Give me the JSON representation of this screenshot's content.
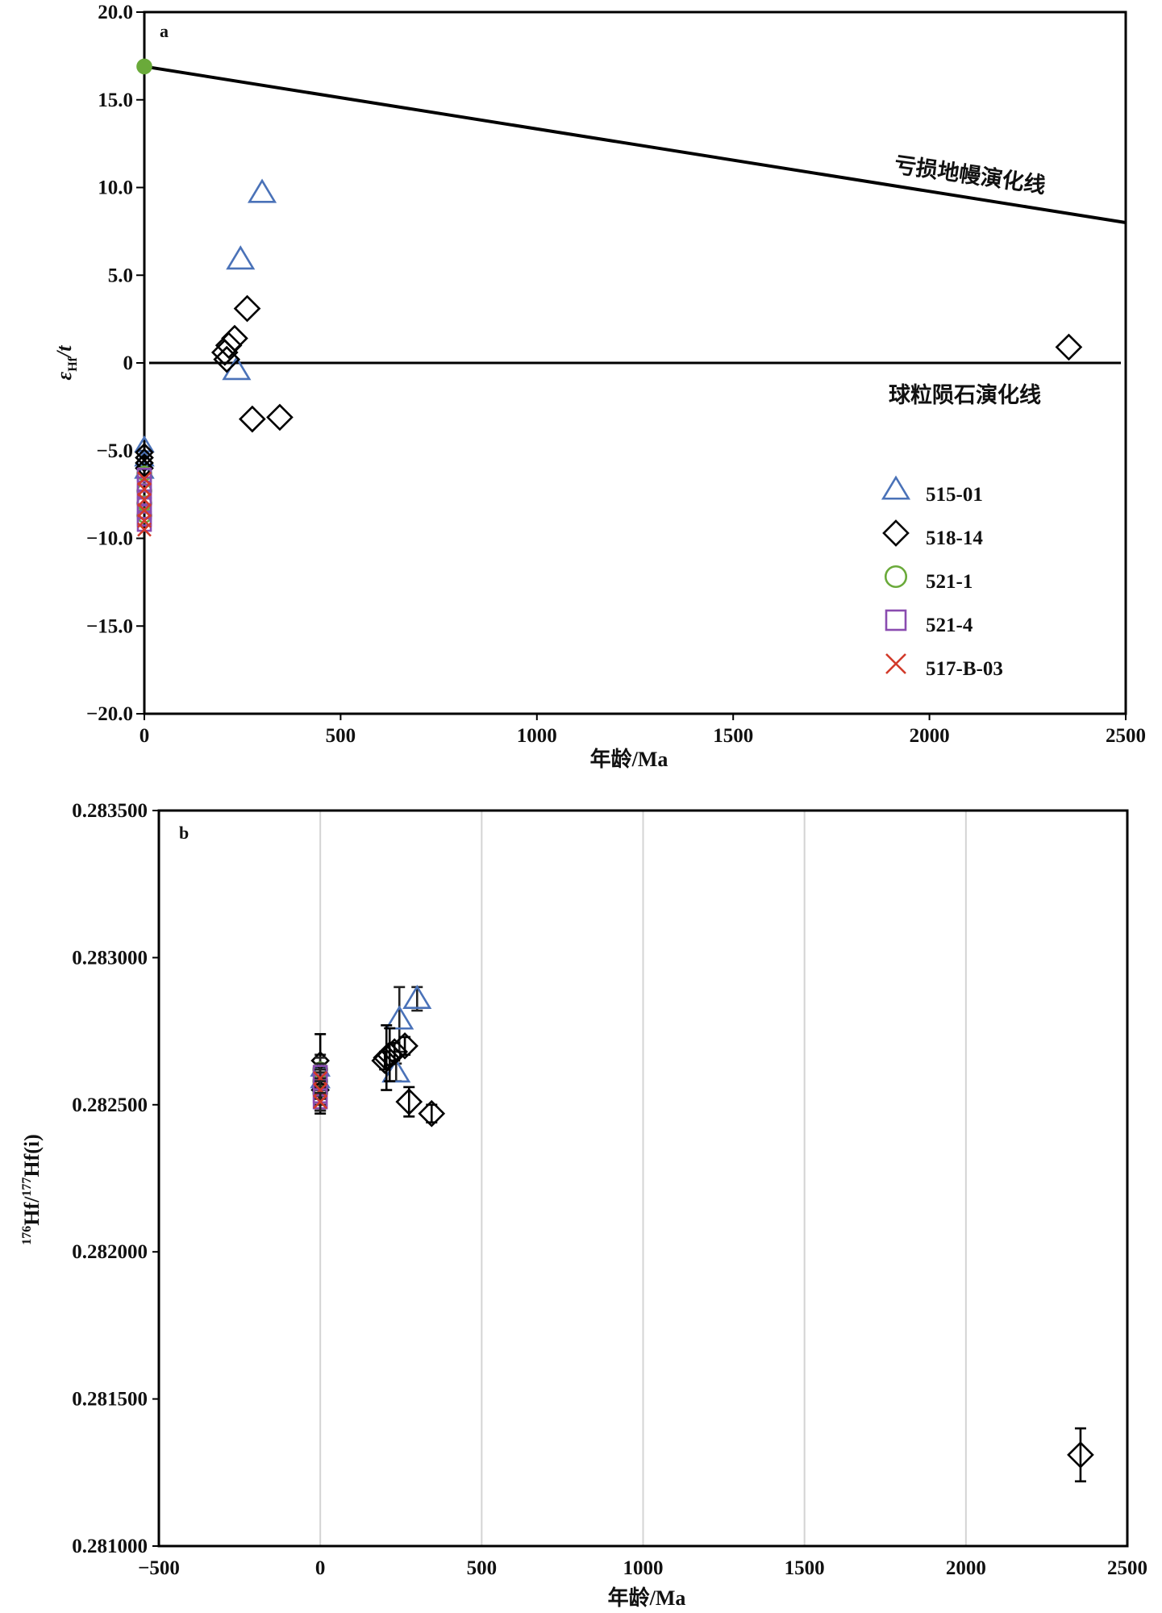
{
  "colors": {
    "515-01": "#4a72b8",
    "518-14": "#000000",
    "521-1": "#6aaa3a",
    "521-4": "#8a4cb0",
    "517-B-03": "#d23a2a",
    "grid": "#d4d4d4",
    "axis": "#000000"
  },
  "chart_data": [
    {
      "type": "scatter",
      "panel": "a",
      "xlabel": "年龄/Ma",
      "ylabel": "ε_Hf/t",
      "ylabel_main": "ε",
      "ylabel_sub": "Hf",
      "ylabel_tail": "/t",
      "xlim": [
        0,
        2500
      ],
      "ylim": [
        -20,
        20
      ],
      "x_ticks": [
        "0",
        "500",
        "1000",
        "1500",
        "2000",
        "2500"
      ],
      "x_tick_values": [
        0,
        500,
        1000,
        1500,
        2000,
        2500
      ],
      "y_ticks": [
        "20.0",
        "15.0",
        "10.0",
        "5.0",
        "0",
        "−5.0",
        "−10.0",
        "−15.0",
        "−20.0"
      ],
      "y_tick_values": [
        20,
        15,
        10,
        5,
        0,
        -5,
        -10,
        -15,
        -20
      ],
      "grid": false,
      "legend_position": "bottom-right",
      "reference_lines": [
        {
          "label": "亏损地幔演化线",
          "x": [
            0,
            2500
          ],
          "y": [
            16.9,
            8.0
          ]
        },
        {
          "label": "球粒陨石演化线",
          "x": [
            0,
            2500
          ],
          "y": [
            0,
            0
          ]
        }
      ],
      "series": [
        {
          "name": "515-01",
          "marker": "triangle",
          "x": [
            300,
            245,
            235,
            0,
            0,
            0
          ],
          "y": [
            9.7,
            5.9,
            -0.4,
            -4.7,
            -5.5,
            -6.2
          ]
        },
        {
          "name": "518-14",
          "marker": "diamond",
          "x": [
            262,
            230,
            215,
            205,
            210,
            275,
            345,
            2355,
            0,
            0,
            0,
            0
          ],
          "y": [
            3.1,
            1.4,
            1.0,
            0.6,
            0.2,
            -3.2,
            -3.1,
            0.9,
            -5.1,
            -5.4,
            -5.7,
            -6.0
          ]
        },
        {
          "name": "521-1",
          "marker": "circle",
          "x": [
            0,
            0,
            0,
            0,
            0
          ],
          "y": [
            16.9,
            -6.3,
            -7.3,
            -8.0,
            -8.7
          ]
        },
        {
          "name": "521-4",
          "marker": "square",
          "x": [
            0,
            0,
            0,
            0,
            0,
            0,
            0,
            0
          ],
          "y": [
            -6.4,
            -6.9,
            -7.3,
            -7.7,
            -8.1,
            -8.5,
            -8.9,
            -9.2
          ]
        },
        {
          "name": "517-B-03",
          "marker": "x",
          "x": [
            0,
            0,
            0,
            0,
            0,
            0
          ],
          "y": [
            -6.6,
            -7.2,
            -7.8,
            -8.4,
            -9.0,
            -9.5
          ]
        }
      ]
    },
    {
      "type": "scatter",
      "panel": "b",
      "xlabel": "年龄/Ma",
      "ylabel": "176Hf/177Hf(i)",
      "ylabel_sup1": "176",
      "ylabel_mid": "Hf/",
      "ylabel_sup2": "177",
      "ylabel_tail": "Hf(i)",
      "xlim": [
        -500,
        2500
      ],
      "ylim": [
        0.281,
        0.2835
      ],
      "x_ticks": [
        "−500",
        "0",
        "500",
        "1000",
        "1500",
        "2000",
        "2500"
      ],
      "x_tick_values": [
        -500,
        0,
        500,
        1000,
        1500,
        2000,
        2500
      ],
      "y_ticks": [
        "0.283500",
        "0.283000",
        "0.282500",
        "0.282000",
        "0.281500",
        "0.281000"
      ],
      "y_tick_values": [
        0.2835,
        0.283,
        0.2825,
        0.282,
        0.2815,
        0.281
      ],
      "grid": "vertical",
      "series": [
        {
          "name": "515-01",
          "marker": "triangle",
          "x": [
            300,
            245,
            235,
            0,
            0
          ],
          "y": [
            0.28286,
            0.28279,
            0.28261,
            0.28262,
            0.28258
          ],
          "err": [
            4e-05,
            0.00011,
            3e-05,
            5e-05,
            4e-05
          ]
        },
        {
          "name": "518-14",
          "marker": "diamond",
          "x": [
            262,
            230,
            215,
            205,
            200,
            275,
            345,
            2355,
            0,
            0
          ],
          "y": [
            0.2827,
            0.28268,
            0.28267,
            0.28266,
            0.28265,
            0.28251,
            0.28247,
            0.28131,
            0.28265,
            0.28255
          ],
          "err": [
            3e-05,
            3e-05,
            9e-05,
            0.00011,
            3e-05,
            5e-05,
            3e-05,
            9e-05,
            9e-05,
            8e-05
          ]
        },
        {
          "name": "521-1",
          "marker": "circle",
          "x": [
            0,
            0,
            0
          ],
          "y": [
            0.28262,
            0.28258,
            0.28254
          ],
          "err": [
            4e-05,
            4e-05,
            4e-05
          ]
        },
        {
          "name": "521-4",
          "marker": "square",
          "x": [
            0,
            0,
            0,
            0,
            0
          ],
          "y": [
            0.28261,
            0.28258,
            0.28256,
            0.28253,
            0.28251
          ],
          "err": [
            3e-05,
            3e-05,
            3e-05,
            3e-05,
            3e-05
          ]
        },
        {
          "name": "517-B-03",
          "marker": "x",
          "x": [
            0,
            0,
            0
          ],
          "y": [
            0.28259,
            0.28255,
            0.28251
          ],
          "err": [
            3e-05,
            3e-05,
            3e-05
          ]
        }
      ]
    }
  ]
}
